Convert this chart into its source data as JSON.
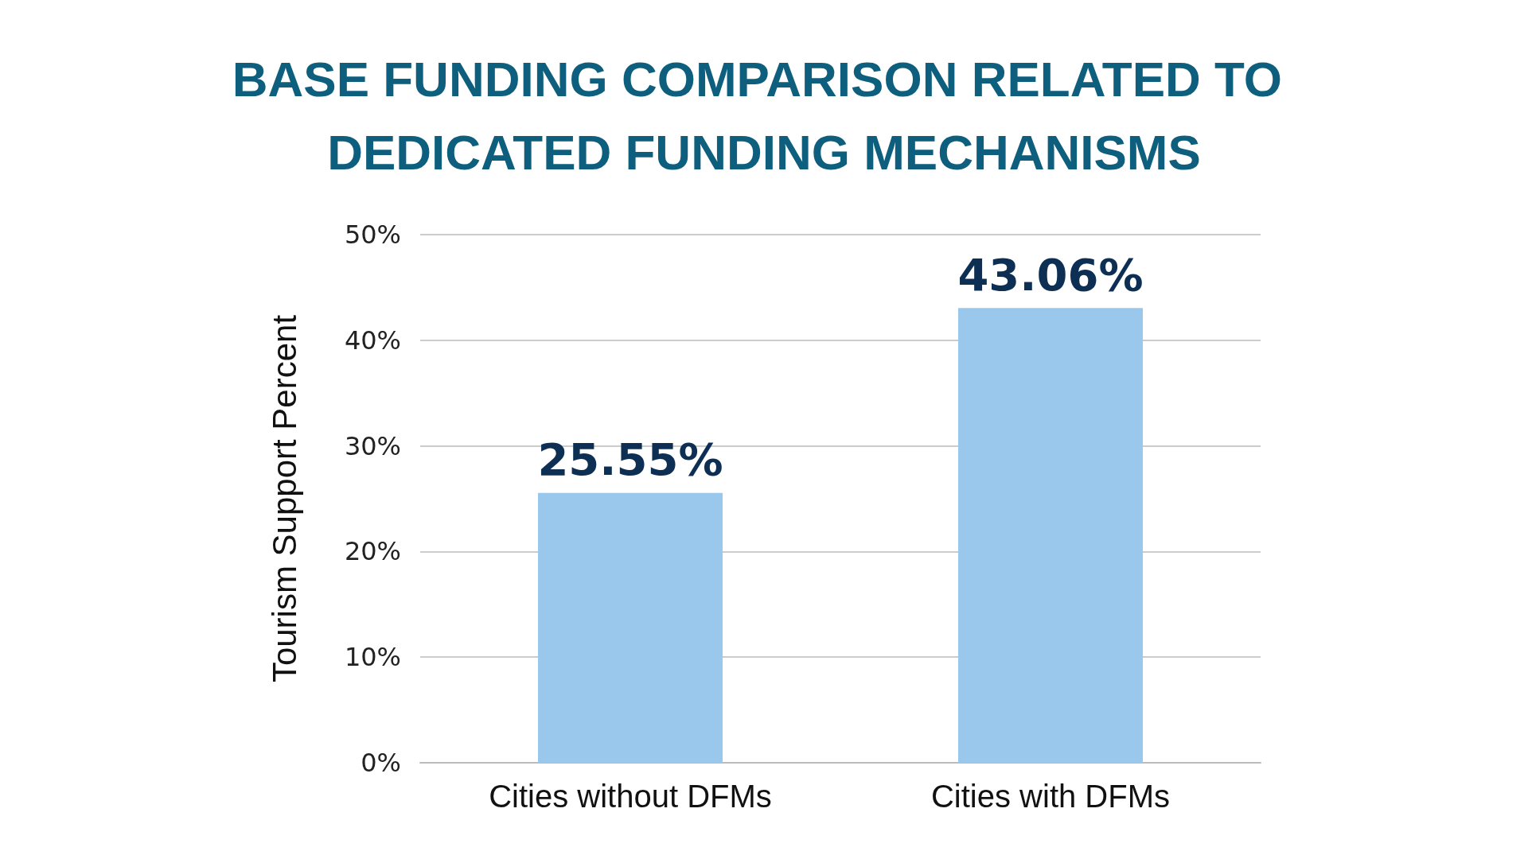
{
  "chart_data": {
    "type": "bar",
    "title": "BASE FUNDING COMPARISON RELATED TO DEDICATED FUNDING MECHANISMS",
    "ylabel": "Tourism Support Percent",
    "categories": [
      "Cities without DFMs",
      "Cities with DFMs"
    ],
    "values": [
      25.55,
      43.06
    ],
    "color": "#99c8ec",
    "value_labels": [
      "25.55%",
      "43.06%"
    ],
    "ylim": [
      0,
      50
    ],
    "yticks": [
      {
        "value": 0,
        "label": "0%"
      },
      {
        "value": 10,
        "label": "10%"
      },
      {
        "value": 20,
        "label": "20%"
      },
      {
        "value": 30,
        "label": "30%"
      },
      {
        "value": 40,
        "label": "40%"
      },
      {
        "value": 50,
        "label": "50%"
      }
    ],
    "grid": "y"
  }
}
